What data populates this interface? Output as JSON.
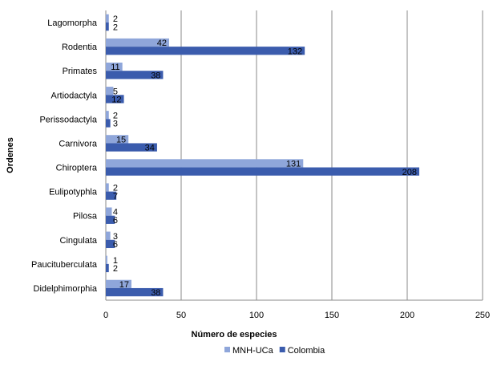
{
  "chart_data": {
    "type": "bar",
    "orientation": "horizontal",
    "categories": [
      "Lagomorpha",
      "Rodentia",
      "Primates",
      "Artiodactyla",
      "Perissodactyla",
      "Carnivora",
      "Chiroptera",
      "Eulipotyphla",
      "Pilosa",
      "Cingulata",
      "Paucituberculata",
      "Didelphimorphia"
    ],
    "series": [
      {
        "name": "MNH-UCa",
        "color": "#8FA6DA",
        "values": [
          2,
          42,
          11,
          5,
          2,
          15,
          131,
          2,
          4,
          3,
          1,
          17
        ]
      },
      {
        "name": "Colombia",
        "color": "#3B5CAD",
        "values": [
          2,
          132,
          38,
          12,
          3,
          34,
          208,
          7,
          6,
          6,
          2,
          38
        ]
      }
    ],
    "xlabel": "Número de especies",
    "ylabel": "Ordenes",
    "xlim": [
      0,
      250
    ],
    "xticks": [
      "0",
      "50",
      "100",
      "150",
      "200",
      "250"
    ],
    "grid": true,
    "legend": "bottom"
  }
}
